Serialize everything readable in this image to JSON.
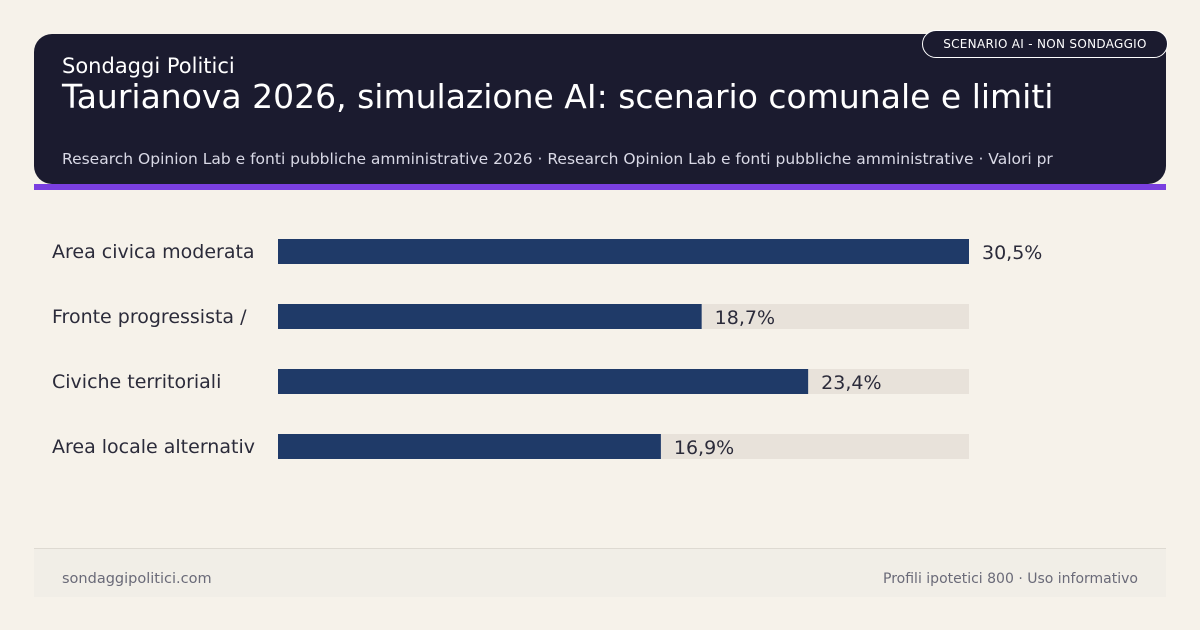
{
  "header": {
    "brand": "Sondaggi Politici",
    "title": "Taurianova 2026, simulazione AI: scenario comunale e limiti",
    "subtitle": "Research Opinion Lab e fonti pubbliche amministrative 2026 · Research Opinion Lab e fonti pubbliche amministrative · Valori pr",
    "badge": "SCENARIO AI - NON SONDAGGIO"
  },
  "colors": {
    "header_bg": "#1b1b2f",
    "accent": "#7a3fe0",
    "bar": "#1f3a68",
    "track": "#e8e2da",
    "background": "#f6f2ea"
  },
  "chart_data": {
    "type": "bar",
    "orientation": "horizontal",
    "categories": [
      "Area civica moderata",
      "Fronte progressista /",
      "Civiche territoriali",
      "Area locale alternativ"
    ],
    "values": [
      30.5,
      18.7,
      23.4,
      16.9
    ],
    "value_labels": [
      "30,5%",
      "18,7%",
      "23,4%",
      "16,9%"
    ],
    "xlim": [
      0,
      30.5
    ],
    "grid": false,
    "legend": "none"
  },
  "footer": {
    "left": "sondaggipolitici.com",
    "right": "Profili ipotetici 800 · Uso informativo"
  }
}
